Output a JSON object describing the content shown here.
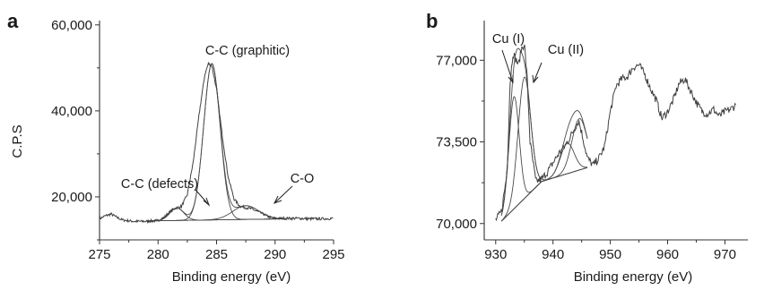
{
  "chart_data": [
    {
      "panel": "a",
      "type": "line",
      "ylabel": "C.P.S",
      "xlabel": "Binding energy (eV)",
      "xlim": [
        275,
        295
      ],
      "ylim": [
        10000,
        61000
      ],
      "xticks": [
        "275",
        "280",
        "285",
        "290",
        "295"
      ],
      "yticks": [
        "20,000",
        "40,000",
        "60,000"
      ],
      "ytick_values": [
        20000,
        40000,
        60000
      ],
      "xtick_values": [
        275,
        280,
        285,
        290,
        295
      ],
      "annotations": [
        "C-C (graphitic)",
        "C-C (defects)",
        "C-O"
      ],
      "raw_spectrum": {
        "x": [
          275,
          275.5,
          276,
          276.5,
          277,
          278,
          279,
          280,
          280.5,
          281,
          281.5,
          282,
          282.5,
          283,
          283.5,
          284,
          284.3,
          284.6,
          285,
          285.5,
          286,
          286.5,
          287,
          287.5,
          288,
          288.5,
          289,
          289.5,
          290,
          291,
          292,
          293,
          294,
          295
        ],
        "y": [
          14900,
          15600,
          16000,
          15200,
          14600,
          14300,
          14300,
          14500,
          15200,
          16500,
          17400,
          17800,
          20500,
          28000,
          39000,
          48500,
          51000,
          50500,
          45000,
          34000,
          24500,
          19500,
          17800,
          17500,
          17200,
          16600,
          16000,
          15300,
          15000,
          15000,
          15000,
          14900,
          14900,
          15000
        ]
      },
      "fit_components": [
        {
          "center": 284.6,
          "height": 36300,
          "sigma": 0.7
        },
        {
          "center": 281.6,
          "height": 2900,
          "sigma": 0.6
        },
        {
          "center": 287.5,
          "height": 3200,
          "sigma": 1.1
        }
      ],
      "baseline": {
        "x": [
          279,
          291
        ],
        "y": [
          14400,
          14900
        ]
      }
    },
    {
      "panel": "b",
      "type": "line",
      "xlabel": "Binding energy (eV)",
      "xlim": [
        928,
        974
      ],
      "ylim": [
        69300,
        78700
      ],
      "xticks": [
        "930",
        "940",
        "950",
        "960",
        "970"
      ],
      "yticks": [
        "70,000",
        "73,500",
        "77,000"
      ],
      "ytick_values": [
        70000,
        73500,
        77000
      ],
      "xtick_values": [
        930,
        940,
        950,
        960,
        970
      ],
      "annotations": [
        "Cu (I)",
        "Cu (II)"
      ],
      "raw_spectrum": {
        "x": [
          930,
          931,
          932,
          932.5,
          933,
          934,
          934.5,
          935,
          935.5,
          936,
          937,
          938,
          939,
          940,
          941,
          942,
          943,
          944,
          944.5,
          945,
          946,
          947,
          948,
          949,
          950,
          951,
          952,
          953,
          954,
          955,
          956,
          957,
          958,
          959,
          960,
          961,
          962,
          963,
          964,
          965,
          966,
          967,
          968,
          969,
          970,
          971,
          972
        ],
        "y": [
          70150,
          70500,
          72200,
          76000,
          77300,
          76800,
          77500,
          77700,
          76200,
          73500,
          71800,
          71900,
          72200,
          72600,
          73000,
          73300,
          73700,
          74200,
          74400,
          73900,
          72800,
          72500,
          72800,
          73300,
          74800,
          75900,
          76200,
          76300,
          76700,
          76800,
          76400,
          75800,
          75300,
          74500,
          74800,
          75300,
          76000,
          76200,
          75700,
          75200,
          74800,
          74700,
          74900,
          74600,
          74800,
          74900,
          75100
        ]
      },
      "fit_components": [
        {
          "center": 933.2,
          "height": 4800,
          "sigma": 0.9
        },
        {
          "center": 935.0,
          "height": 5200,
          "sigma": 1.1
        },
        {
          "center": 942.5,
          "height": 1300,
          "sigma": 1.2
        },
        {
          "center": 944.6,
          "height": 2200,
          "sigma": 1.3
        }
      ],
      "baseline": {
        "x": [
          931,
          938,
          946
        ],
        "y": [
          70100,
          71800,
          72400
        ]
      }
    }
  ]
}
